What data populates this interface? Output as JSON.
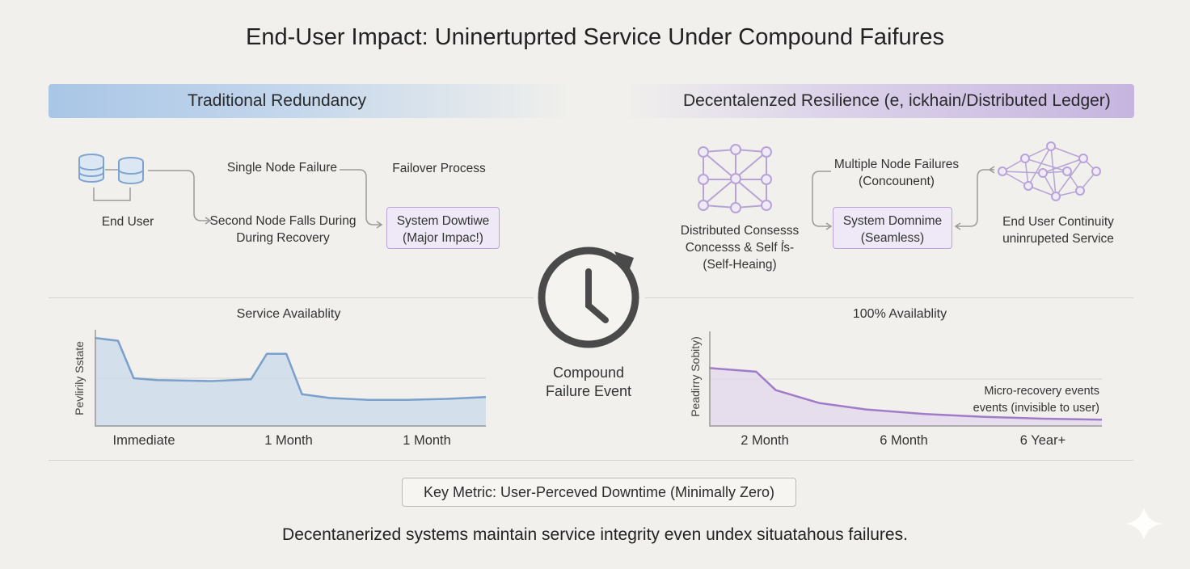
{
  "title": "End-User Impact: Uninertuprted Service Under Compound Faifures",
  "left_panel": {
    "banner": "Traditional Redundancy",
    "end_user": "End User",
    "single_node_failure": "Single Node Failure",
    "failover_process": "Failover Process",
    "second_node_line1": "Second Node Falls During",
    "second_node_line2": "During Recovery",
    "downtime_box_line1": "System Dowtiwe",
    "downtime_box_line2": "(Major Impac!)"
  },
  "right_panel": {
    "banner": "Decentalenzed Resilience (e, ickhain/Distributed Ledger)",
    "consensus_line1": "Distributed Consesss",
    "consensus_line2": "Concesss & Self ẛs-",
    "consensus_line3": "(Self-Heaing)",
    "multi_failure_line1": "Multiple Node Failures",
    "multi_failure_line2": "(Concounent)",
    "seamless_box_line1": "System Domnime",
    "seamless_box_line2": "(Seamless)",
    "continuity_line1": "End User Continuity",
    "continuity_line2": "uninrupeted Service"
  },
  "center": {
    "event_line1": "Compound",
    "event_line2": "Failure Event",
    "icon": "clock-cycle-icon"
  },
  "key_metric": "Key Metric: User-Perceved Downtime (Minimally Zero)",
  "footer": "Decentanerized systems maintain service integrity even undex situatahous failures.",
  "chart_data": [
    {
      "type": "area",
      "title": "Service Availablity",
      "ylabel": "Pevlirily Sstate",
      "xlabel": "",
      "categories": [
        "Immediate",
        "1 Month",
        "1 Month"
      ],
      "x": [
        0,
        0.06,
        0.1,
        0.16,
        0.3,
        0.4,
        0.44,
        0.49,
        0.53,
        0.6,
        0.7,
        0.8,
        0.9,
        1.0
      ],
      "y": [
        0.93,
        0.9,
        0.5,
        0.48,
        0.47,
        0.49,
        0.76,
        0.76,
        0.33,
        0.29,
        0.27,
        0.27,
        0.28,
        0.3
      ],
      "ylim": [
        0,
        1
      ],
      "color": "#7aa0cc",
      "fill": "#c9d9ec",
      "grid": true
    },
    {
      "type": "area",
      "title": "100% Availablity",
      "ylabel": "Peadirry Sobity)",
      "xlabel": "",
      "categories": [
        "2 Month",
        "6 Month",
        "6 Year+"
      ],
      "x": [
        0,
        0.12,
        0.17,
        0.28,
        0.4,
        0.55,
        0.7,
        0.85,
        1.0
      ],
      "y": [
        0.62,
        0.58,
        0.38,
        0.24,
        0.17,
        0.12,
        0.09,
        0.07,
        0.06
      ],
      "ylim": [
        0,
        1
      ],
      "color": "#a07cc8",
      "fill": "#e3d8ee",
      "annotation_line1": "Micro-recovery events",
      "annotation_line2": "events (invisible to user)",
      "grid": true
    }
  ]
}
